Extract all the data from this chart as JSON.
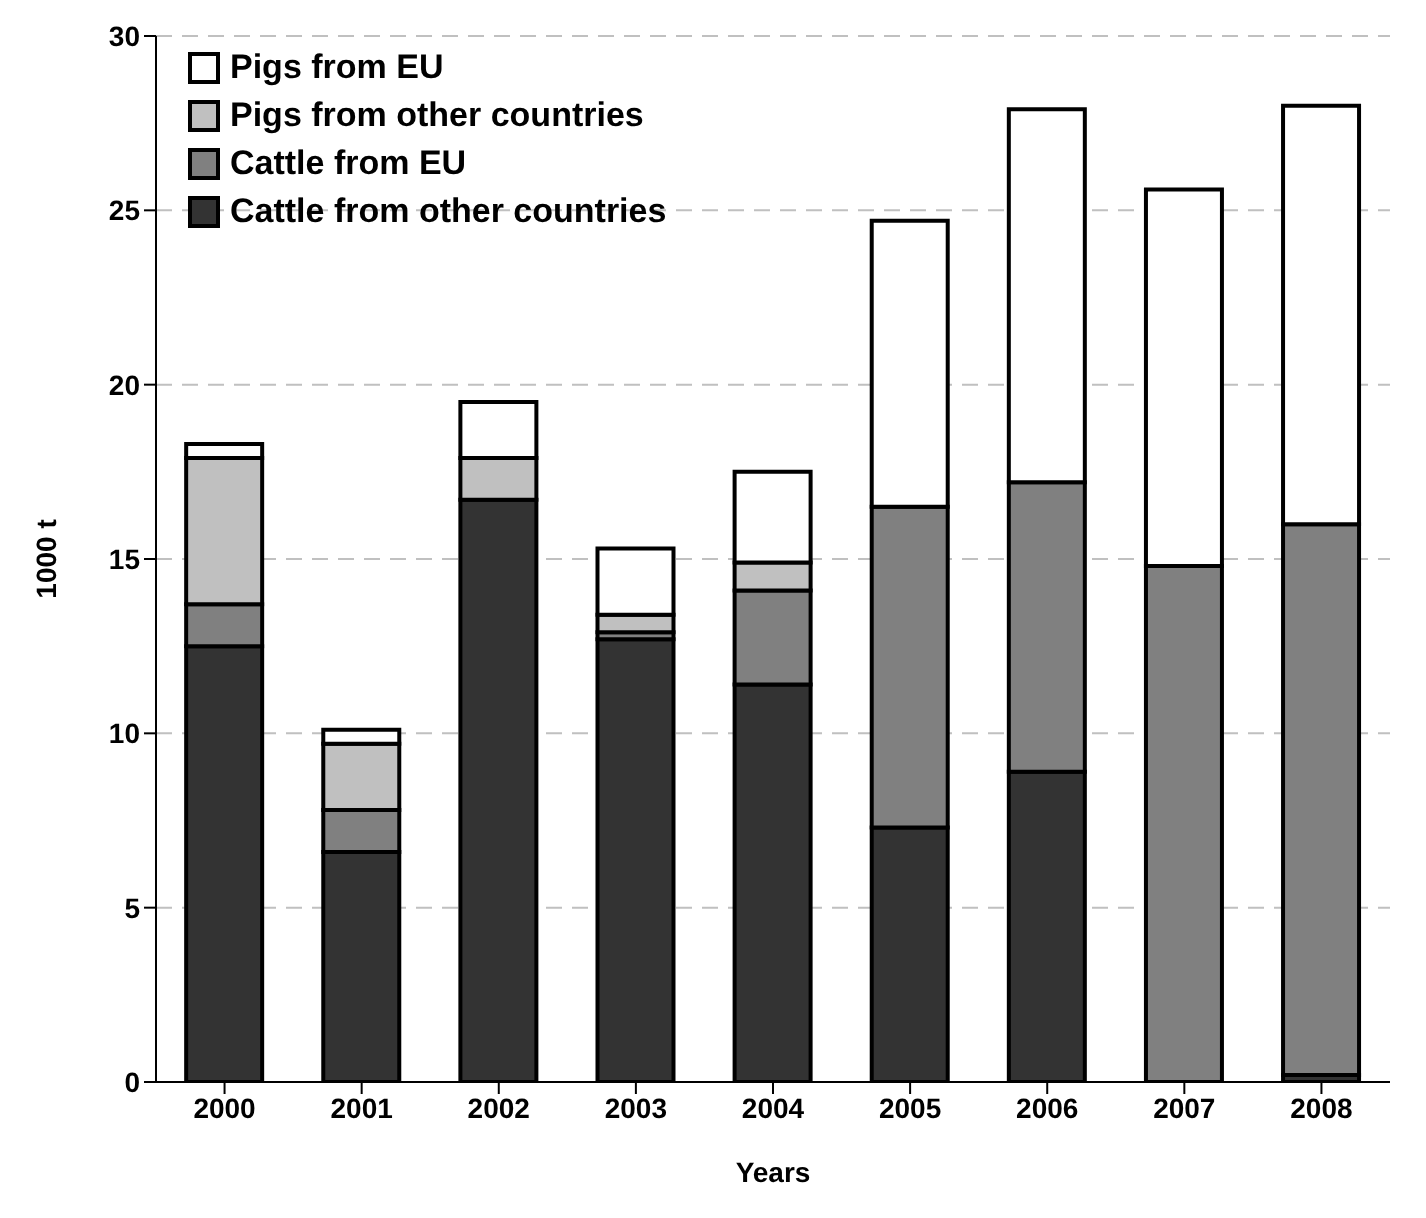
{
  "chart_data": {
    "type": "bar",
    "stacked": true,
    "xlabel": "Years",
    "ylabel": "1000 t",
    "categories": [
      "2000",
      "2001",
      "2002",
      "2003",
      "2004",
      "2005",
      "2006",
      "2007",
      "2008"
    ],
    "series": [
      {
        "name": "Cattle from other countries",
        "color": "#333333",
        "values": [
          12.5,
          6.6,
          16.7,
          12.7,
          11.4,
          7.3,
          8.9,
          0,
          0.2
        ]
      },
      {
        "name": "Cattle from EU",
        "color": "#808080",
        "values": [
          1.2,
          1.2,
          0,
          0.2,
          2.7,
          9.2,
          8.3,
          14.8,
          15.8
        ]
      },
      {
        "name": "Pigs from other countries",
        "color": "#c0c0c0",
        "values": [
          4.2,
          1.9,
          1.2,
          0.5,
          0.8,
          0,
          0,
          0,
          0
        ]
      },
      {
        "name": "Pigs from EU",
        "color": "#ffffff",
        "values": [
          0.4,
          0.4,
          1.6,
          1.9,
          2.6,
          8.2,
          10.7,
          10.8,
          12.0
        ]
      }
    ],
    "ylim": [
      0,
      30
    ],
    "yticks": [
      0,
      5,
      10,
      15,
      20,
      25,
      30
    ],
    "grid": "y",
    "legend": "top left"
  }
}
